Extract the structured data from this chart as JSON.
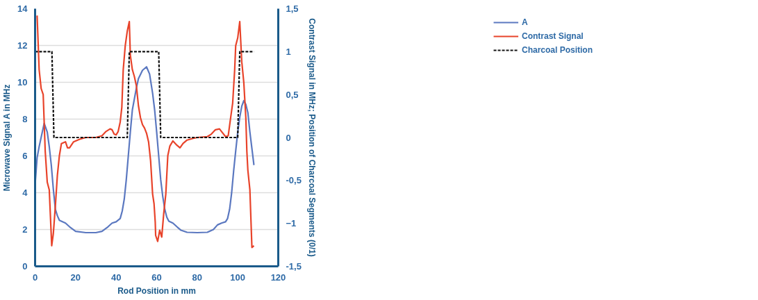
{
  "chart_data": {
    "type": "line",
    "xlabel": "Rod Position in mm",
    "ylabel": "Microwave Signal A in MHz",
    "y2label": "Contrast Signal in MHz; Position of Charcoal Segments (0/1)",
    "xlim": [
      0,
      120
    ],
    "xticks": [
      0,
      20,
      40,
      60,
      80,
      100,
      120
    ],
    "ylim": [
      0,
      14
    ],
    "yticks": [
      0,
      2,
      4,
      6,
      8,
      10,
      12,
      14
    ],
    "y2lim": [
      -1.5,
      1.5
    ],
    "y2ticks": [
      {
        "value": -1.5,
        "label": "-1,5"
      },
      -1,
      {
        "value": -0.5,
        "label": "-0,5"
      },
      0,
      {
        "value": 0.5,
        "label": "0,5"
      },
      1,
      {
        "value": 1.5,
        "label": "1,5"
      }
    ],
    "grid": "y",
    "legend": "right",
    "marker": "none",
    "series": [
      {
        "name": "A",
        "color": "#5b78c0",
        "line_style": "solid",
        "x": [
          0,
          1,
          2,
          4.5,
          6,
          7,
          8,
          9,
          10,
          11,
          12,
          15,
          17,
          20,
          25,
          30,
          33,
          36,
          38,
          40,
          42,
          43,
          44,
          45,
          46,
          47,
          48,
          50,
          51,
          53,
          55,
          56.5,
          58,
          59,
          60,
          61,
          62,
          63,
          64,
          65,
          66,
          68,
          70,
          72,
          75,
          80,
          85,
          88,
          90,
          92,
          94,
          95,
          96,
          97,
          98,
          99,
          100,
          101,
          102,
          103,
          104,
          105,
          106,
          107,
          108
        ],
        "values": [
          4.44,
          5.9,
          6.5,
          7.77,
          7.3,
          6.5,
          5.5,
          4.2,
          3.1,
          2.75,
          2.5,
          2.35,
          2.15,
          1.9,
          1.83,
          1.83,
          1.9,
          2.15,
          2.35,
          2.42,
          2.6,
          3.0,
          3.65,
          4.7,
          6.0,
          7.3,
          8.5,
          9.7,
          10.2,
          10.65,
          10.84,
          10.45,
          9.4,
          8.5,
          7.3,
          6.0,
          4.7,
          3.8,
          3.1,
          2.67,
          2.45,
          2.35,
          2.15,
          1.96,
          1.85,
          1.83,
          1.85,
          2.0,
          2.25,
          2.35,
          2.42,
          2.6,
          3.1,
          4.0,
          5.2,
          6.27,
          7.3,
          8.1,
          8.7,
          9.0,
          8.8,
          8.35,
          7.3,
          6.4,
          5.5
        ]
      },
      {
        "name": "Contrast Signal",
        "color": "#e8432a",
        "line_style": "solid",
        "axis": "y2",
        "x": [
          1,
          2,
          3,
          4,
          5,
          6,
          7,
          8.2,
          9,
          10,
          11,
          12,
          13,
          15,
          16,
          17,
          19,
          22,
          25,
          30,
          33,
          35,
          37,
          38,
          39,
          40,
          41,
          42,
          42.8,
          43.5,
          44.5,
          45.5,
          46.5,
          47,
          48,
          49,
          50,
          51,
          52,
          53,
          54,
          55,
          56,
          57,
          58,
          58.7,
          59.3,
          59.5,
          60.5,
          61.5,
          62.5,
          63.5,
          64.5,
          65.5,
          66.5,
          68,
          70,
          71.5,
          73,
          75,
          78,
          80,
          85,
          87,
          89,
          91,
          92,
          94,
          95.3,
          96.5,
          97.5,
          98.5,
          99,
          100,
          101,
          102,
          103,
          104,
          104.5,
          105,
          106,
          107,
          108
        ],
        "values": [
          1.42,
          0.79,
          0.57,
          0.5,
          -0.16,
          -0.52,
          -0.61,
          -1.26,
          -1.12,
          -0.8,
          -0.44,
          -0.21,
          -0.07,
          -0.05,
          -0.12,
          -0.12,
          -0.05,
          -0.02,
          0,
          0,
          0.02,
          0.07,
          0.1,
          0.09,
          0.04,
          0.03,
          0.07,
          0.18,
          0.35,
          0.79,
          1.07,
          1.24,
          1.35,
          0.96,
          0.79,
          0.71,
          0.6,
          0.37,
          0.23,
          0.15,
          0.11,
          0.05,
          -0.05,
          -0.27,
          -0.66,
          -0.77,
          -0.99,
          -1.14,
          -1.21,
          -1.08,
          -1.16,
          -0.88,
          -0.66,
          -0.21,
          -0.1,
          -0.04,
          -0.09,
          -0.12,
          -0.07,
          -0.03,
          -0.01,
          0,
          0.01,
          0.04,
          0.09,
          0.1,
          0.07,
          0.01,
          0.02,
          0.23,
          0.4,
          0.79,
          1.07,
          1.16,
          1.35,
          0.88,
          0.64,
          0.23,
          -0.16,
          -0.38,
          -0.61,
          -1.28,
          -1.26
        ]
      },
      {
        "name": "Charcoal Position",
        "color": "#111111",
        "line_style": "dashed",
        "axis": "y2",
        "x": [
          0,
          8.3,
          9.3,
          45.5,
          46.5,
          61,
          62,
          100,
          101,
          108
        ],
        "values": [
          1,
          1,
          0,
          0,
          1,
          1,
          0,
          0,
          1,
          1
        ]
      }
    ]
  }
}
